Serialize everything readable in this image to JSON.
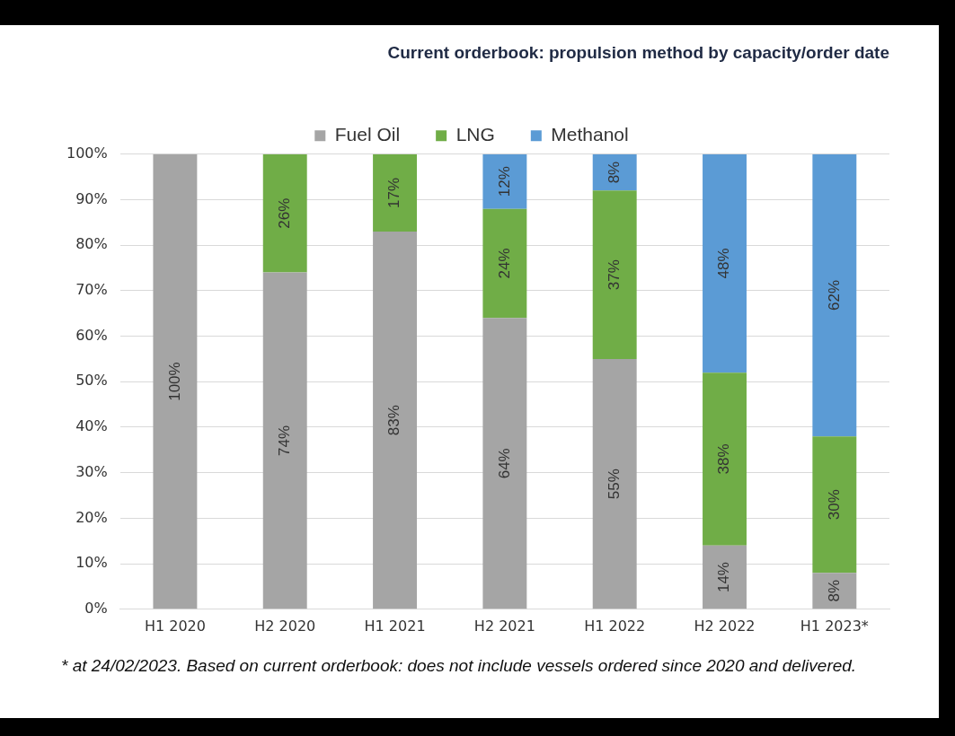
{
  "chart_data": {
    "type": "bar",
    "title": "Current orderbook: propulsion method by capacity/order date",
    "categories": [
      "H1 2020",
      "H2 2020",
      "H1 2021",
      "H2 2021",
      "H1 2022",
      "H2 2022",
      "H1 2023*"
    ],
    "stacked": true,
    "ylim": [
      0,
      100
    ],
    "yticks": [
      {
        "value": 0,
        "label": "0%"
      },
      {
        "value": 10,
        "label": "10%"
      },
      {
        "value": 20,
        "label": "20%"
      },
      {
        "value": 30,
        "label": "30%"
      },
      {
        "value": 40,
        "label": "40%"
      },
      {
        "value": 50,
        "label": "50%"
      },
      {
        "value": 60,
        "label": "60%"
      },
      {
        "value": 70,
        "label": "70%"
      },
      {
        "value": 80,
        "label": "80%"
      },
      {
        "value": 90,
        "label": "90%"
      },
      {
        "value": 100,
        "label": "100%"
      }
    ],
    "grid": "y",
    "legend": "top",
    "series": [
      {
        "name": "Fuel Oil",
        "color": "#a5a5a5",
        "values": [
          100,
          74,
          83,
          64,
          55,
          14,
          8
        ],
        "value_labels": [
          "100%",
          "74%",
          "83%",
          "64%",
          "55%",
          "14%",
          "8%"
        ]
      },
      {
        "name": "LNG",
        "color": "#70ad47",
        "values": [
          0,
          26,
          17,
          24,
          37,
          38,
          30
        ],
        "value_labels": [
          null,
          "26%",
          "17%",
          "24%",
          "37%",
          "38%",
          "30%"
        ]
      },
      {
        "name": "Methanol",
        "color": "#5b9bd5",
        "values": [
          0,
          0,
          0,
          12,
          8,
          48,
          62
        ],
        "value_labels": [
          null,
          null,
          null,
          "12%",
          "8%",
          "48%",
          "62%"
        ]
      }
    ],
    "annotations": [
      "* at 24/02/2023. Based on current orderbook: does not include vessels ordered since 2020 and delivered."
    ]
  }
}
